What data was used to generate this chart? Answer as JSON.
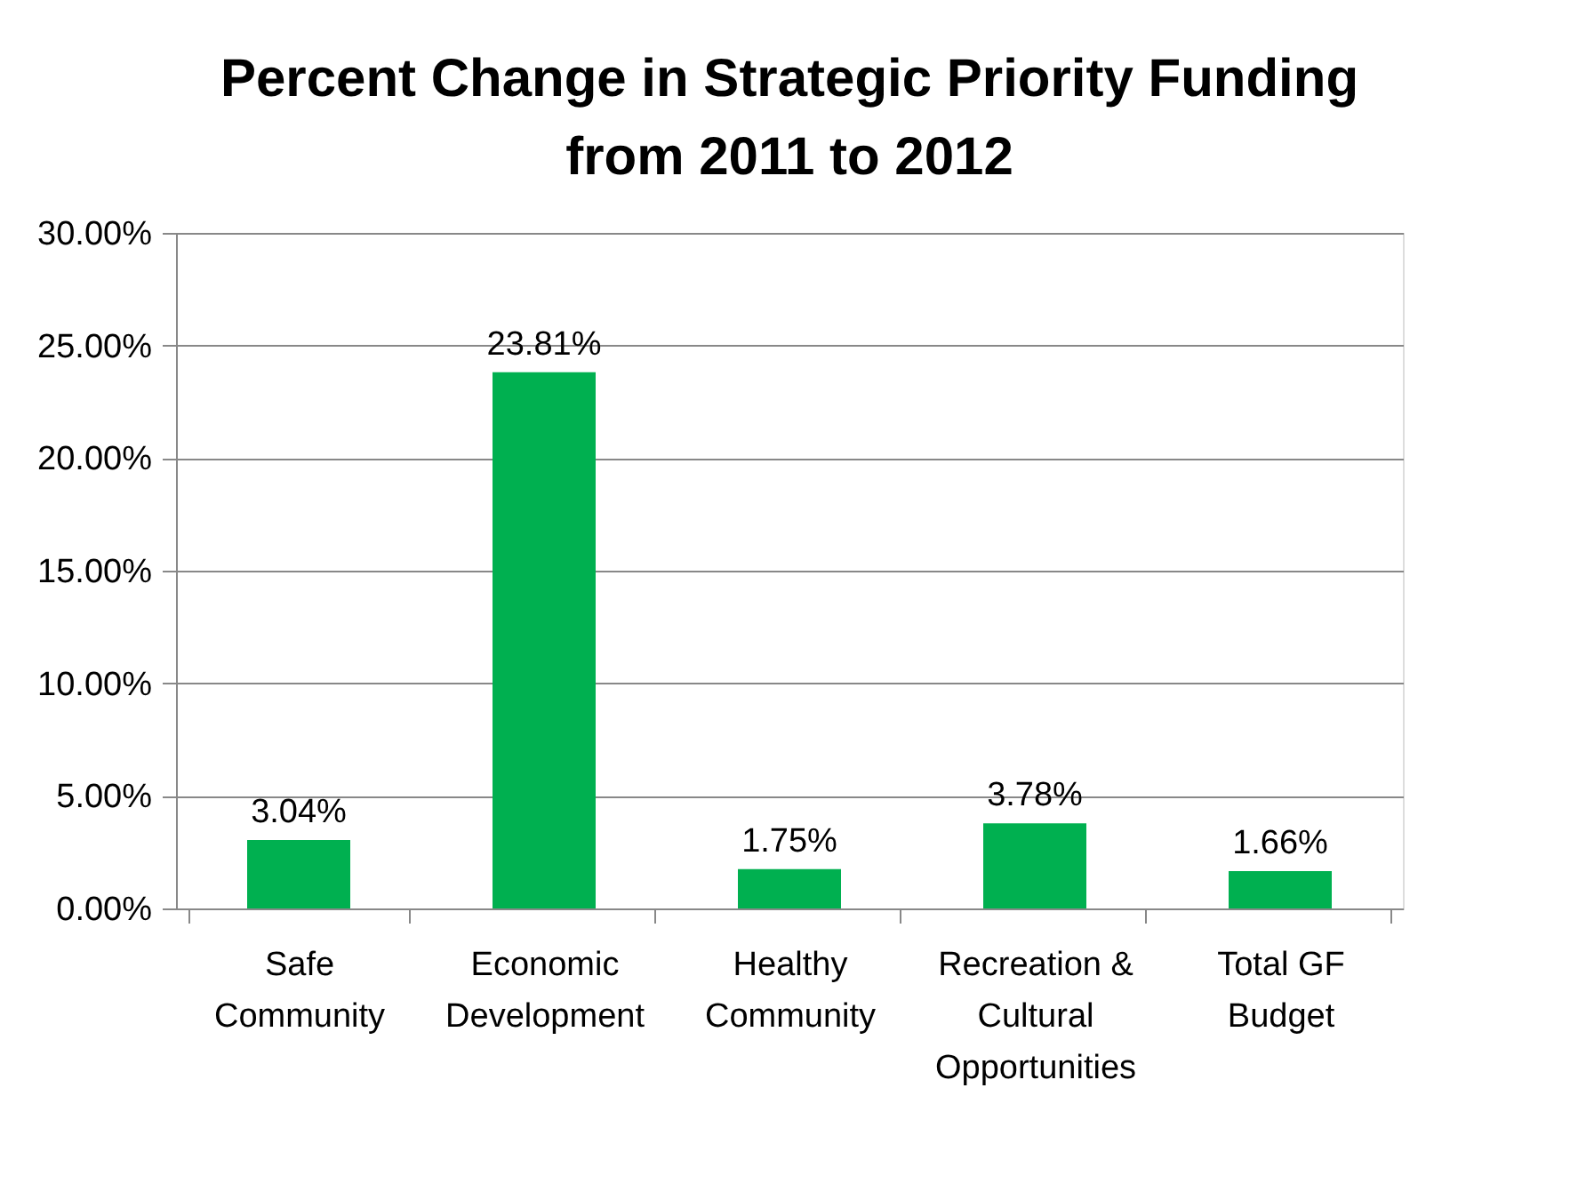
{
  "chart_data": {
    "type": "bar",
    "title": "Percent Change in Strategic Priority Funding\nfrom 2011 to 2012",
    "categories": [
      "Safe\nCommunity",
      "Economic\nDevelopment",
      "Healthy\nCommunity",
      "Recreation &\nCultural\nOpportunities",
      "Total GF\nBudget"
    ],
    "values": [
      3.04,
      23.81,
      1.75,
      3.78,
      1.66
    ],
    "value_labels": [
      "3.04%",
      "23.81%",
      "1.75%",
      "3.78%",
      "1.66%"
    ],
    "color": "#00b050",
    "ylim": [
      0,
      30
    ],
    "yticks": [
      {
        "value": 0,
        "label": "0.00%"
      },
      {
        "value": 5,
        "label": "5.00%"
      },
      {
        "value": 10,
        "label": "10.00%"
      },
      {
        "value": 15,
        "label": "15.00%"
      },
      {
        "value": 20,
        "label": "20.00%"
      },
      {
        "value": 25,
        "label": "25.00%"
      },
      {
        "value": 30,
        "label": "30.00%"
      }
    ],
    "grid": "y"
  }
}
